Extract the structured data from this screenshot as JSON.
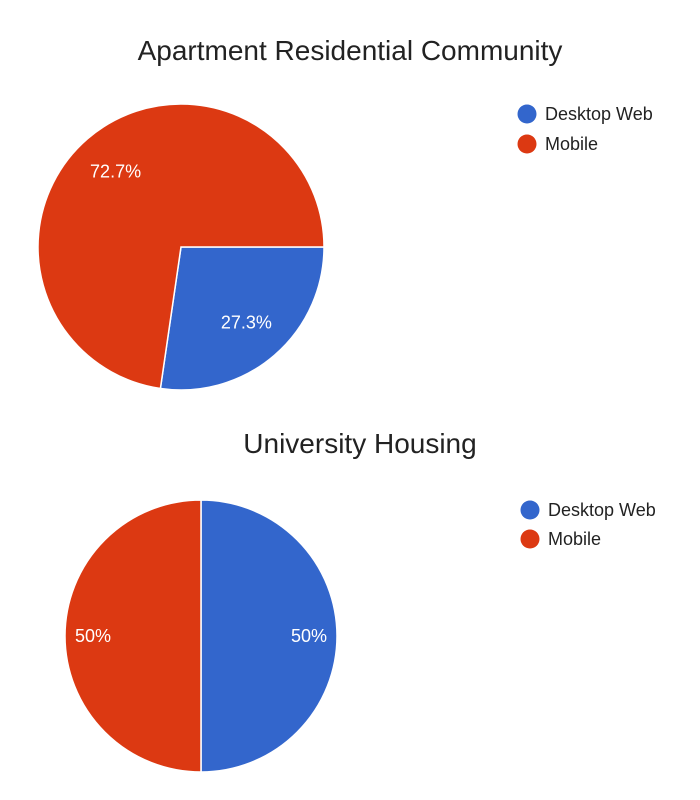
{
  "colors": {
    "desktop": "#3366CC",
    "mobile": "#DC3912"
  },
  "chart_data": [
    {
      "type": "pie",
      "title": "Apartment Residential Community",
      "legend_position": "right",
      "slices": [
        {
          "name": "Desktop Web",
          "value": 27.3,
          "label": "27.3%",
          "color": "#3366CC"
        },
        {
          "name": "Mobile",
          "value": 72.7,
          "label": "72.7%",
          "color": "#DC3912"
        }
      ]
    },
    {
      "type": "pie",
      "title": "University Housing",
      "legend_position": "right",
      "slices": [
        {
          "name": "Desktop Web",
          "value": 50,
          "label": "50%",
          "color": "#3366CC"
        },
        {
          "name": "Mobile",
          "value": 50,
          "label": "50%",
          "color": "#DC3912"
        }
      ]
    }
  ]
}
